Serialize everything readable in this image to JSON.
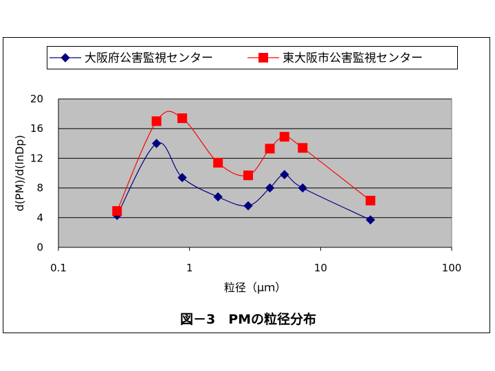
{
  "chart_data": {
    "type": "line",
    "title": "図－3　PMの粒径分布",
    "xlabel": "粒径（μｍ）",
    "ylabel": "d(PM)/d(lnDp)",
    "xscale": "log",
    "xlim": [
      0.1,
      100
    ],
    "ylim": [
      0,
      20
    ],
    "x_ticks": [
      0.1,
      1,
      10,
      100
    ],
    "x_tick_labels": [
      "0.1",
      "1",
      "10",
      "100"
    ],
    "y_ticks": [
      0,
      4,
      8,
      12,
      16,
      20
    ],
    "y_tick_labels": [
      "0",
      "4",
      "8",
      "12",
      "16",
      "20"
    ],
    "grid": "horizontal",
    "legend_position": "top",
    "plot_background": "#c0c0c0",
    "series": [
      {
        "name": "大阪府公害監視センター",
        "color": "#000080",
        "marker": "diamond",
        "x": [
          0.28,
          0.56,
          0.88,
          1.65,
          2.8,
          4.1,
          5.3,
          7.3,
          24
        ],
        "y": [
          4.3,
          14.0,
          9.4,
          6.8,
          5.6,
          8.0,
          9.8,
          8.0,
          3.7
        ]
      },
      {
        "name": "東大阪市公害監視センター",
        "color": "#ff0000",
        "marker": "square",
        "x": [
          0.28,
          0.56,
          0.88,
          1.65,
          2.8,
          4.1,
          5.3,
          7.3,
          24
        ],
        "y": [
          4.9,
          17.0,
          17.4,
          11.4,
          9.7,
          13.3,
          14.9,
          13.4,
          6.3
        ]
      }
    ]
  }
}
